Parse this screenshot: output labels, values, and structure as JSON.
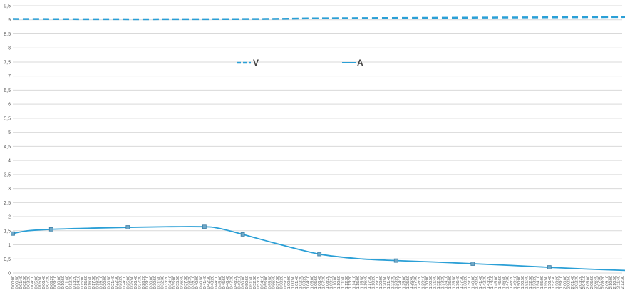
{
  "chart_data": {
    "type": "line",
    "title": "",
    "xlabel": "",
    "ylabel": "",
    "ylim": [
      0,
      9.5
    ],
    "y_step": 0.5,
    "yticks": [
      "0",
      "0,5",
      "1",
      "1,5",
      "2",
      "2,5",
      "3",
      "3,5",
      "4",
      "4,5",
      "5",
      "5,5",
      "6",
      "6,5",
      "7",
      "7,5",
      "8",
      "8,5",
      "9",
      "9,5"
    ],
    "x_start_label": "0:00:00",
    "x_step_seconds": 50,
    "x_tick_count": 160,
    "grid": "horizontal",
    "legend": "top-center",
    "series": [
      {
        "name": "V",
        "style": "dashed",
        "color": "#2a9fd6",
        "points": [
          {
            "x": "0:00:00",
            "y": 9.03
          },
          {
            "x": "0:27:30",
            "y": 9.02
          },
          {
            "x": "0:55:00",
            "y": 9.03
          },
          {
            "x": "1:05:00",
            "y": 9.05
          },
          {
            "x": "1:30:00",
            "y": 9.07
          },
          {
            "x": "2:00:00",
            "y": 9.09
          },
          {
            "x": "2:13:20",
            "y": 9.1
          }
        ]
      },
      {
        "name": "A",
        "style": "solid",
        "color": "#2a9fd6",
        "points": [
          {
            "x": "0:00:00",
            "y": 1.4
          },
          {
            "x": "0:03:20",
            "y": 1.5
          },
          {
            "x": "0:08:20",
            "y": 1.55
          },
          {
            "x": "0:16:40",
            "y": 1.59
          },
          {
            "x": "0:25:00",
            "y": 1.62
          },
          {
            "x": "0:33:20",
            "y": 1.64
          },
          {
            "x": "0:41:40",
            "y": 1.64
          },
          {
            "x": "0:45:00",
            "y": 1.58
          },
          {
            "x": "0:50:00",
            "y": 1.37
          },
          {
            "x": "0:58:20",
            "y": 1.0
          },
          {
            "x": "1:06:40",
            "y": 0.67
          },
          {
            "x": "1:15:00",
            "y": 0.51
          },
          {
            "x": "1:23:20",
            "y": 0.44
          },
          {
            "x": "1:31:40",
            "y": 0.39
          },
          {
            "x": "1:40:00",
            "y": 0.33
          },
          {
            "x": "1:48:20",
            "y": 0.27
          },
          {
            "x": "1:56:40",
            "y": 0.2
          },
          {
            "x": "2:05:00",
            "y": 0.14
          },
          {
            "x": "2:13:20",
            "y": 0.09
          }
        ]
      }
    ]
  }
}
